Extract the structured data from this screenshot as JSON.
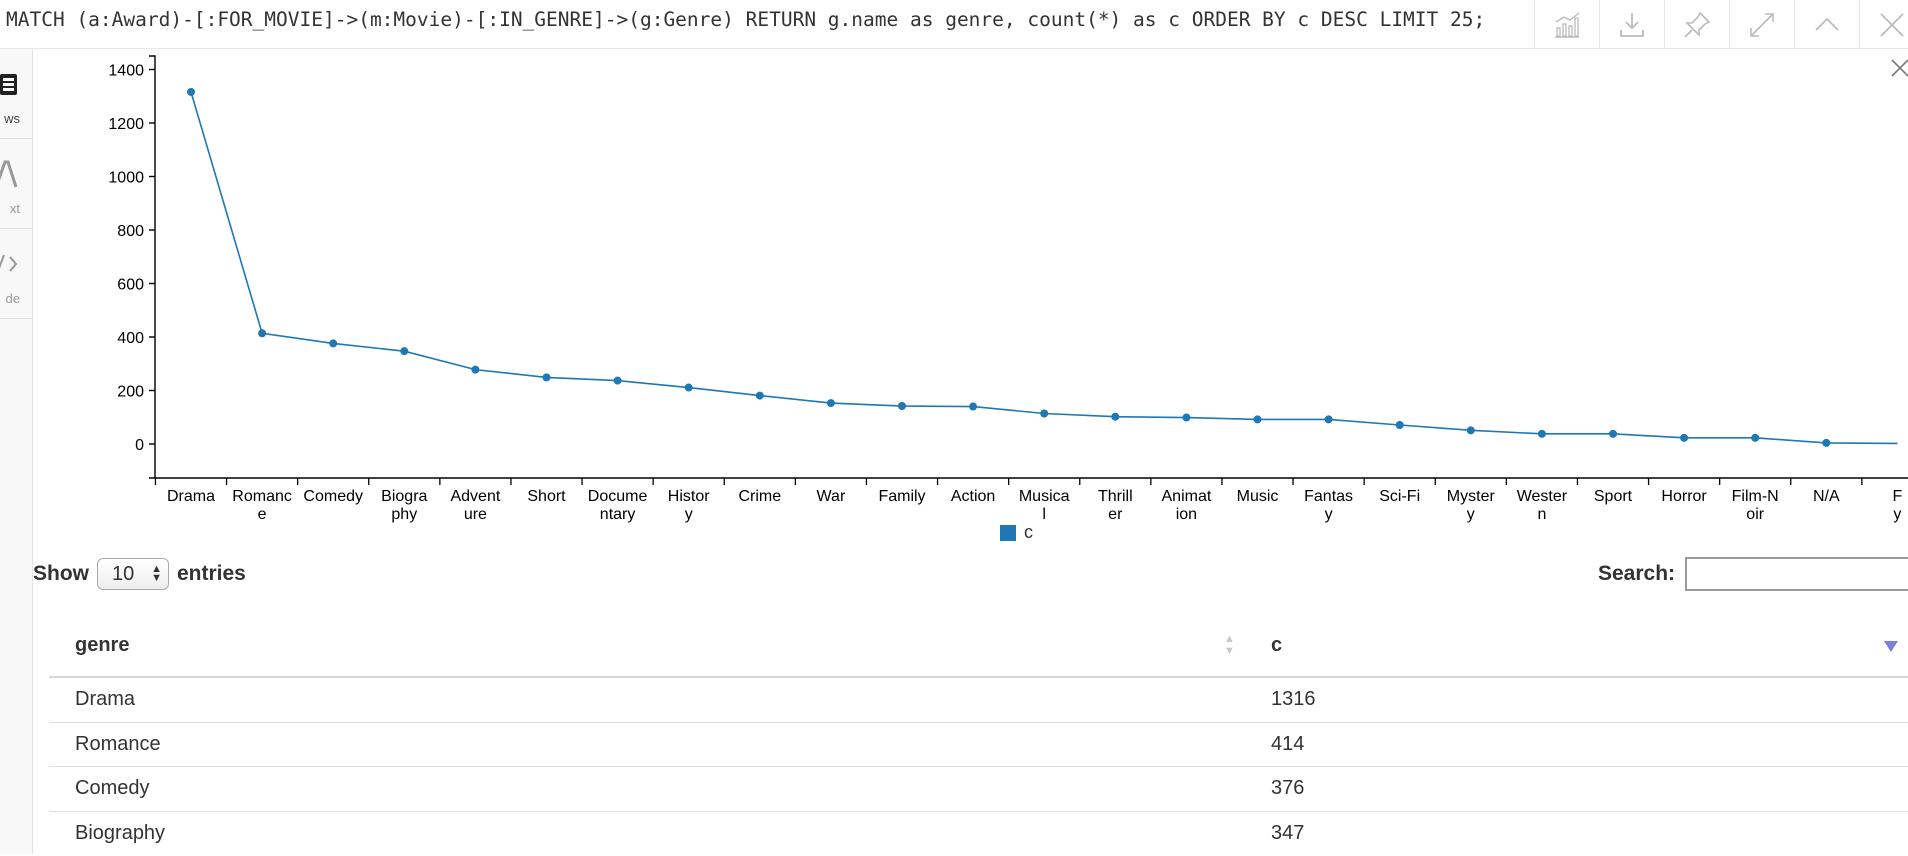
{
  "query": "MATCH (a:Award)-[:FOR_MOVIE]->(m:Movie)-[:IN_GENRE]->(g:Genre) RETURN g.name as genre, count(*) as c ORDER BY c DESC LIMIT 25;",
  "toolbar": {
    "icons": [
      "chart-icon",
      "download-icon",
      "pin-icon",
      "expand-icon",
      "collapse-icon",
      "close-icon"
    ]
  },
  "sidebar": {
    "items": [
      {
        "label": "ws",
        "icon": "table-icon"
      },
      {
        "label": "xt",
        "icon": "text-icon"
      },
      {
        "label": "de",
        "icon": "code-icon"
      }
    ]
  },
  "chart_data": {
    "type": "line",
    "categories": [
      "Drama",
      "Romance",
      "Comedy",
      "Biography",
      "Adventure",
      "Short",
      "Documentary",
      "History",
      "Crime",
      "War",
      "Family",
      "Action",
      "Musical",
      "Thriller",
      "Animation",
      "Music",
      "Fantasy",
      "Sci-Fi",
      "Mystery",
      "Western",
      "Sport",
      "Horror",
      "Film-Noir",
      "N/A",
      "Fy"
    ],
    "category_labels": [
      [
        "Drama"
      ],
      [
        "Romanc",
        "e"
      ],
      [
        "Comedy"
      ],
      [
        "Biogra",
        "phy"
      ],
      [
        "Advent",
        "ure"
      ],
      [
        "Short"
      ],
      [
        "Docume",
        "ntary"
      ],
      [
        "Histor",
        "y"
      ],
      [
        "Crime"
      ],
      [
        "War"
      ],
      [
        "Family"
      ],
      [
        "Action"
      ],
      [
        "Musica",
        "l"
      ],
      [
        "Thrill",
        "er"
      ],
      [
        "Animat",
        "ion"
      ],
      [
        "Music"
      ],
      [
        "Fantas",
        "y"
      ],
      [
        "Sci-Fi"
      ],
      [
        "Myster",
        "y"
      ],
      [
        "Wester",
        "n"
      ],
      [
        "Sport"
      ],
      [
        "Horror"
      ],
      [
        "Film-N",
        "oir"
      ],
      [
        "N/A"
      ],
      [
        "F",
        "y"
      ]
    ],
    "series": [
      {
        "name": "c",
        "values": [
          1316,
          414,
          376,
          347,
          278,
          249,
          237,
          211,
          181,
          153,
          142,
          140,
          114,
          102,
          99,
          92,
          92,
          71,
          51,
          38,
          38,
          23,
          23,
          4,
          2
        ]
      }
    ],
    "yticks": [
      0,
      200,
      400,
      600,
      800,
      1000,
      1200,
      1400
    ],
    "ylim": [
      -130,
      1450
    ],
    "color": "#1f77b4",
    "legend": "bottom-center",
    "grid": false
  },
  "table": {
    "show_label": "Show",
    "entries_label": "entries",
    "page_length": "10",
    "search_label": "Search:",
    "search_value": "",
    "columns": [
      "genre",
      "c"
    ],
    "rows": [
      [
        "Drama",
        "1316"
      ],
      [
        "Romance",
        "414"
      ],
      [
        "Comedy",
        "376"
      ],
      [
        "Biography",
        "347"
      ]
    ]
  }
}
